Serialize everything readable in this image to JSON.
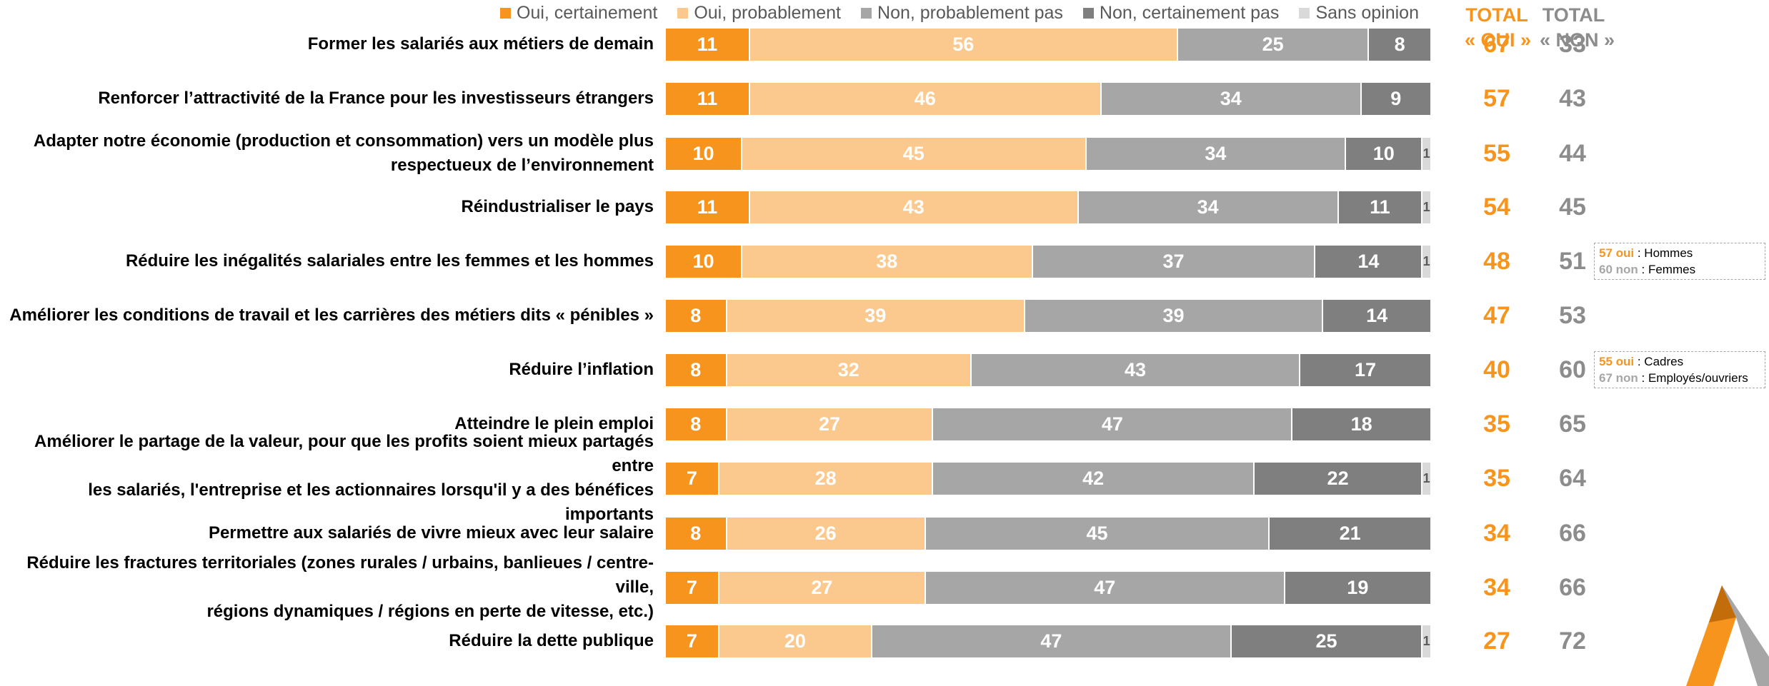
{
  "colors": {
    "oui_certainement": "#f7941d",
    "oui_probablement": "#fbc98e",
    "non_probablement_pas": "#a6a6a6",
    "non_certainement_pas": "#7f7f7f",
    "sans_opinion": "#d9d9d9",
    "total_oui": "#f7941d",
    "total_non": "#8c8c8c"
  },
  "legend": [
    {
      "key": "oui_certainement",
      "label": "Oui, certainement"
    },
    {
      "key": "oui_probablement",
      "label": "Oui, probablement"
    },
    {
      "key": "non_probablement_pas",
      "label": "Non, probablement pas"
    },
    {
      "key": "non_certainement_pas",
      "label": "Non, certainement pas"
    },
    {
      "key": "sans_opinion",
      "label": "Sans opinion"
    }
  ],
  "totals_header": {
    "oui_line1": "TOTAL",
    "oui_line2": "« OUI »",
    "non_line1": "TOTAL",
    "non_line2": "« NON »"
  },
  "notes": [
    {
      "row": 4,
      "a_value": "57 oui",
      "a_text": " : Hommes",
      "b_value": "60 non",
      "b_text": " : Femmes"
    },
    {
      "row": 6,
      "a_value": "55 oui",
      "a_text": " : Cadres",
      "b_value": "67 non",
      "b_text": " : Employés/ouvriers"
    }
  ],
  "chart_data": {
    "type": "bar",
    "orientation": "horizontal",
    "stacked": true,
    "title": "",
    "xlabel": "",
    "ylabel": "",
    "series_keys": [
      "oui_certainement",
      "oui_probablement",
      "non_probablement_pas",
      "non_certainement_pas",
      "sans_opinion"
    ],
    "rows": [
      {
        "label": [
          "Former les salariés aux métiers de demain"
        ],
        "values": [
          11,
          56,
          25,
          8,
          0
        ],
        "total_oui": 67,
        "total_non": 33
      },
      {
        "label": [
          "Renforcer l’attractivité de la France pour les investisseurs étrangers"
        ],
        "values": [
          11,
          46,
          34,
          9,
          0
        ],
        "total_oui": 57,
        "total_non": 43
      },
      {
        "label": [
          "Adapter notre économie (production et consommation) vers un modèle plus",
          "respectueux de l’environnement"
        ],
        "values": [
          10,
          45,
          34,
          10,
          1
        ],
        "total_oui": 55,
        "total_non": 44
      },
      {
        "label": [
          "Réindustrialiser le pays"
        ],
        "values": [
          11,
          43,
          34,
          11,
          1
        ],
        "total_oui": 54,
        "total_non": 45
      },
      {
        "label": [
          "Réduire les inégalités salariales entre les femmes et les hommes"
        ],
        "values": [
          10,
          38,
          37,
          14,
          1
        ],
        "total_oui": 48,
        "total_non": 51
      },
      {
        "label": [
          "Améliorer les conditions de travail et les carrières des métiers dits « pénibles »"
        ],
        "values": [
          8,
          39,
          39,
          14,
          0
        ],
        "total_oui": 47,
        "total_non": 53
      },
      {
        "label": [
          "Réduire l’inflation"
        ],
        "values": [
          8,
          32,
          43,
          17,
          0
        ],
        "total_oui": 40,
        "total_non": 60
      },
      {
        "label": [
          "Atteindre le plein emploi"
        ],
        "values": [
          8,
          27,
          47,
          18,
          0
        ],
        "total_oui": 35,
        "total_non": 65
      },
      {
        "label": [
          "Améliorer le partage de la valeur, pour que les profits soient mieux partagés entre",
          "les salariés, l'entreprise et les actionnaires lorsqu'il y a des bénéfices importants"
        ],
        "values": [
          7,
          28,
          42,
          22,
          1
        ],
        "total_oui": 35,
        "total_non": 64
      },
      {
        "label": [
          "Permettre aux salariés de vivre mieux avec leur salaire"
        ],
        "values": [
          8,
          26,
          45,
          21,
          0
        ],
        "total_oui": 34,
        "total_non": 66
      },
      {
        "label": [
          "Réduire les fractures territoriales (zones rurales / urbains, banlieues / centre-ville,",
          "régions dynamiques / régions en perte de vitesse, etc.)"
        ],
        "values": [
          7,
          27,
          47,
          19,
          0
        ],
        "total_oui": 34,
        "total_non": 66
      },
      {
        "label": [
          "Réduire la dette publique"
        ],
        "values": [
          7,
          20,
          47,
          25,
          1
        ],
        "total_oui": 27,
        "total_non": 72
      }
    ]
  }
}
